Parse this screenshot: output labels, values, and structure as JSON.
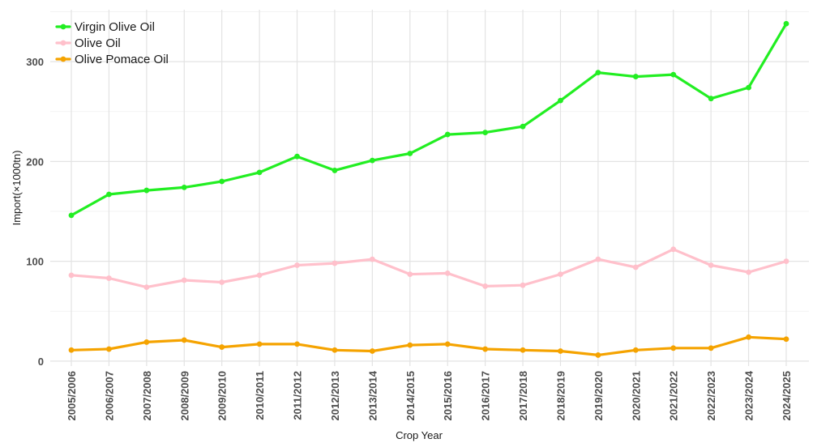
{
  "chart_data": {
    "type": "line",
    "title": "",
    "xlabel": "Crop Year",
    "ylabel": "Import(×1000tn)",
    "categories": [
      "2005/2006",
      "2006/2007",
      "2007/2008",
      "2008/2009",
      "2009/2010",
      "2010/2011",
      "2011/2012",
      "2012/2013",
      "2013/2014",
      "2014/2015",
      "2015/2016",
      "2016/2017",
      "2017/2018",
      "2018/2019",
      "2019/2020",
      "2020/2021",
      "2021/2022",
      "2022/2023",
      "2023/2024",
      "2024/2025"
    ],
    "yticks": [
      0,
      100,
      200,
      300
    ],
    "ylim": [
      -5,
      352
    ],
    "grid": true,
    "legend_position": "top-left",
    "series": [
      {
        "name": "Virgin Olive Oil",
        "color": "#22ee22",
        "values": [
          146,
          167,
          171,
          174,
          180,
          189,
          205,
          191,
          201,
          208,
          227,
          229,
          235,
          261,
          289,
          285,
          287,
          263,
          274,
          338
        ]
      },
      {
        "name": "Olive Oil",
        "color": "#ffc0cb",
        "values": [
          86,
          83,
          74,
          81,
          79,
          86,
          96,
          98,
          102,
          87,
          88,
          75,
          76,
          87,
          102,
          94,
          112,
          96,
          89,
          100
        ]
      },
      {
        "name": "Olive Pomace Oil",
        "color": "#f5a300",
        "values": [
          11,
          12,
          19,
          21,
          14,
          17,
          17,
          11,
          10,
          16,
          17,
          12,
          11,
          10,
          6,
          11,
          13,
          13,
          24,
          22
        ]
      }
    ]
  }
}
